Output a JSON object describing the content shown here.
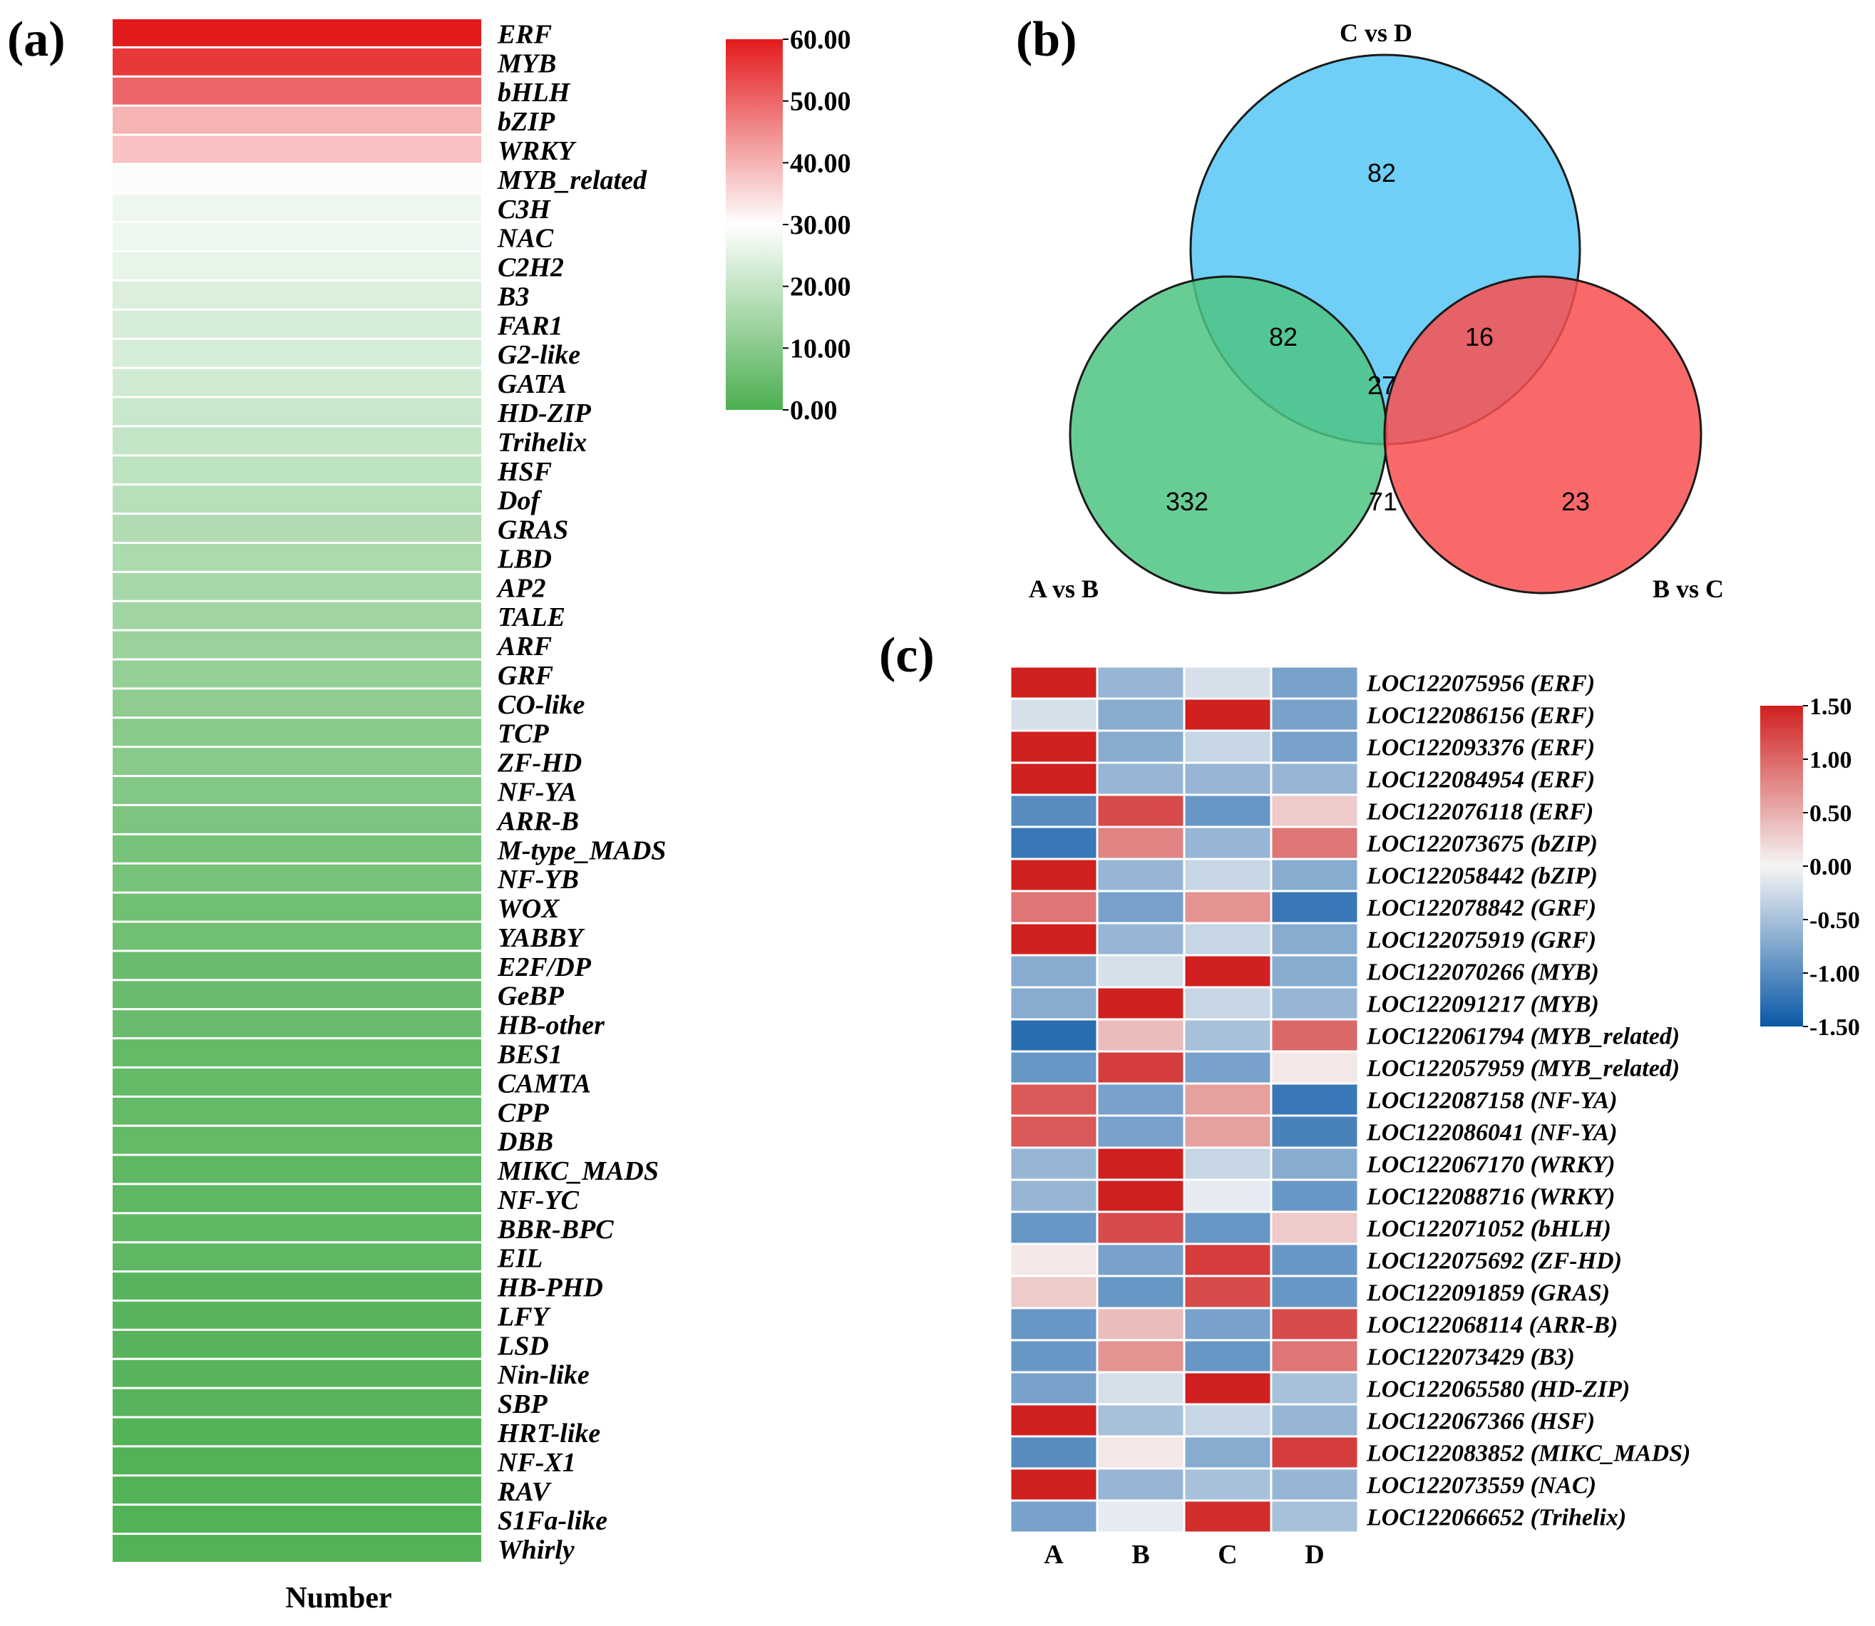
{
  "panels": {
    "a": {
      "label": "(a)",
      "xlabel": "Number"
    },
    "b": {
      "label": "(b)"
    },
    "c": {
      "label": "(c)"
    }
  },
  "colors": {
    "heat_low": "#4caf50",
    "heat_mid": "#ffffff",
    "heat_high": "#e31a1c",
    "diff_low": "#0a58a6",
    "diff_mid": "#f5f5f5",
    "diff_high": "#d02020",
    "venn_cd": "#5bc8f5",
    "venn_ab": "#4dc483",
    "venn_bc": "#f94f4f"
  },
  "chart_data": [
    {
      "id": "a",
      "type": "heatmap",
      "title": "",
      "xlabel": "Number",
      "ylabel": "",
      "range": [
        0,
        60
      ],
      "colorbar": {
        "ticks": [
          "60.00",
          "50.00",
          "40.00",
          "30.00",
          "20.00",
          "10.00",
          "0.00"
        ],
        "values": [
          60,
          50,
          40,
          30,
          20,
          10,
          0
        ]
      },
      "categories": [
        "ERF",
        "MYB",
        "bHLH",
        "bZIP",
        "WRKY",
        "MYB_related",
        "C3H",
        "NAC",
        "C2H2",
        "B3",
        "FAR1",
        "G2-like",
        "GATA",
        "HD-ZIP",
        "Trihelix",
        "HSF",
        "Dof",
        "GRAS",
        "LBD",
        "AP2",
        "TALE",
        "ARF",
        "GRF",
        "CO-like",
        "TCP",
        "ZF-HD",
        "NF-YA",
        "ARR-B",
        "M-type_MADS",
        "NF-YB",
        "WOX",
        "YABBY",
        "E2F/DP",
        "GeBP",
        "HB-other",
        "BES1",
        "CAMTA",
        "CPP",
        "DBB",
        "MIKC_MADS",
        "NF-YC",
        "BBR-BPC",
        "EIL",
        "HB-PHD",
        "LFY",
        "LSD",
        "Nin-like",
        "SBP",
        "HRT-like",
        "NF-X1",
        "RAV",
        "S1Fa-like",
        "Whirly"
      ],
      "values": [
        60,
        56,
        50,
        40,
        38,
        29,
        27,
        27,
        26,
        24,
        23,
        23,
        22,
        21,
        20,
        19,
        18,
        17,
        16,
        15,
        14,
        13,
        12,
        11,
        10,
        10,
        9,
        8,
        7,
        7,
        6,
        6,
        5,
        5,
        5,
        4,
        4,
        4,
        4,
        3,
        3,
        3,
        3,
        2,
        2,
        2,
        2,
        2,
        1,
        1,
        1,
        1,
        1
      ]
    },
    {
      "id": "b",
      "type": "venn",
      "sets": [
        "C vs D",
        "A vs B",
        "B vs C"
      ],
      "regions": {
        "cd_only": 82,
        "ab_only": 332,
        "bc_only": 23,
        "ab_cd": 82,
        "bc_cd": 16,
        "ab_bc": 71,
        "all": 27
      }
    },
    {
      "id": "c",
      "type": "heatmap",
      "columns": [
        "A",
        "B",
        "C",
        "D"
      ],
      "range": [
        -1.5,
        1.5
      ],
      "colorbar": {
        "ticks": [
          "1.50",
          "1.00",
          "0.50",
          "0.00",
          "-0.50",
          "-1.00",
          "-1.50"
        ],
        "values": [
          1.5,
          1.0,
          0.5,
          0.0,
          -0.5,
          -1.0,
          -1.5
        ]
      },
      "rows": [
        {
          "label": "LOC122075956 (ERF)",
          "values": [
            1.5,
            -0.6,
            -0.2,
            -0.8
          ]
        },
        {
          "label": "LOC122086156 (ERF)",
          "values": [
            -0.2,
            -0.7,
            1.5,
            -0.8
          ]
        },
        {
          "label": "LOC122093376 (ERF)",
          "values": [
            1.5,
            -0.7,
            -0.3,
            -0.8
          ]
        },
        {
          "label": "LOC122084954 (ERF)",
          "values": [
            1.5,
            -0.6,
            -0.6,
            -0.6
          ]
        },
        {
          "label": "LOC122076118 (ERF)",
          "values": [
            -1.0,
            1.2,
            -0.9,
            0.3
          ]
        },
        {
          "label": "LOC122073675 (bZIP)",
          "values": [
            -1.2,
            0.8,
            -0.6,
            0.9
          ]
        },
        {
          "label": "LOC122058442 (bZIP)",
          "values": [
            1.5,
            -0.6,
            -0.3,
            -0.7
          ]
        },
        {
          "label": "LOC122078842 (GRF)",
          "values": [
            0.9,
            -0.8,
            0.7,
            -1.2
          ]
        },
        {
          "label": "LOC122075919 (GRF)",
          "values": [
            1.5,
            -0.6,
            -0.3,
            -0.7
          ]
        },
        {
          "label": "LOC122070266 (MYB)",
          "values": [
            -0.7,
            -0.2,
            1.5,
            -0.7
          ]
        },
        {
          "label": "LOC122091217 (MYB)",
          "values": [
            -0.7,
            1.5,
            -0.3,
            -0.6
          ]
        },
        {
          "label": "LOC122061794 (MYB_related)",
          "values": [
            -1.3,
            0.4,
            -0.5,
            1.0
          ]
        },
        {
          "label": "LOC122057959 (MYB_related)",
          "values": [
            -0.9,
            1.3,
            -0.8,
            0.1
          ]
        },
        {
          "label": "LOC122087158 (NF-YA)",
          "values": [
            1.1,
            -0.8,
            0.6,
            -1.2
          ]
        },
        {
          "label": "LOC122086041 (NF-YA)",
          "values": [
            1.1,
            -0.8,
            0.6,
            -1.1
          ]
        },
        {
          "label": "LOC122067170 (WRKY)",
          "values": [
            -0.6,
            1.5,
            -0.3,
            -0.7
          ]
        },
        {
          "label": "LOC122088716 (WRKY)",
          "values": [
            -0.6,
            1.5,
            -0.1,
            -0.9
          ]
        },
        {
          "label": "LOC122071052 (bHLH)",
          "values": [
            -0.9,
            1.2,
            -0.9,
            0.3
          ]
        },
        {
          "label": "LOC122075692 (ZF-HD)",
          "values": [
            0.1,
            -0.8,
            1.3,
            -0.9
          ]
        },
        {
          "label": "LOC122091859 (GRAS)",
          "values": [
            0.3,
            -0.9,
            1.2,
            -0.9
          ]
        },
        {
          "label": "LOC122068114 (ARR-B)",
          "values": [
            -0.9,
            0.4,
            -0.8,
            1.2
          ]
        },
        {
          "label": "LOC122073429 (B3)",
          "values": [
            -0.9,
            0.7,
            -0.9,
            0.9
          ]
        },
        {
          "label": "LOC122065580 (HD-ZIP)",
          "values": [
            -0.8,
            -0.2,
            1.5,
            -0.5
          ]
        },
        {
          "label": "LOC122067366 (HSF)",
          "values": [
            1.5,
            -0.5,
            -0.3,
            -0.6
          ]
        },
        {
          "label": "LOC122083852 (MIKC_MADS)",
          "values": [
            -1.0,
            0.1,
            -0.7,
            1.3
          ]
        },
        {
          "label": "LOC122073559 (NAC)",
          "values": [
            1.5,
            -0.6,
            -0.5,
            -0.6
          ]
        },
        {
          "label": "LOC122066652 (Trihelix)",
          "values": [
            -0.8,
            -0.1,
            1.4,
            -0.5
          ]
        }
      ]
    }
  ]
}
